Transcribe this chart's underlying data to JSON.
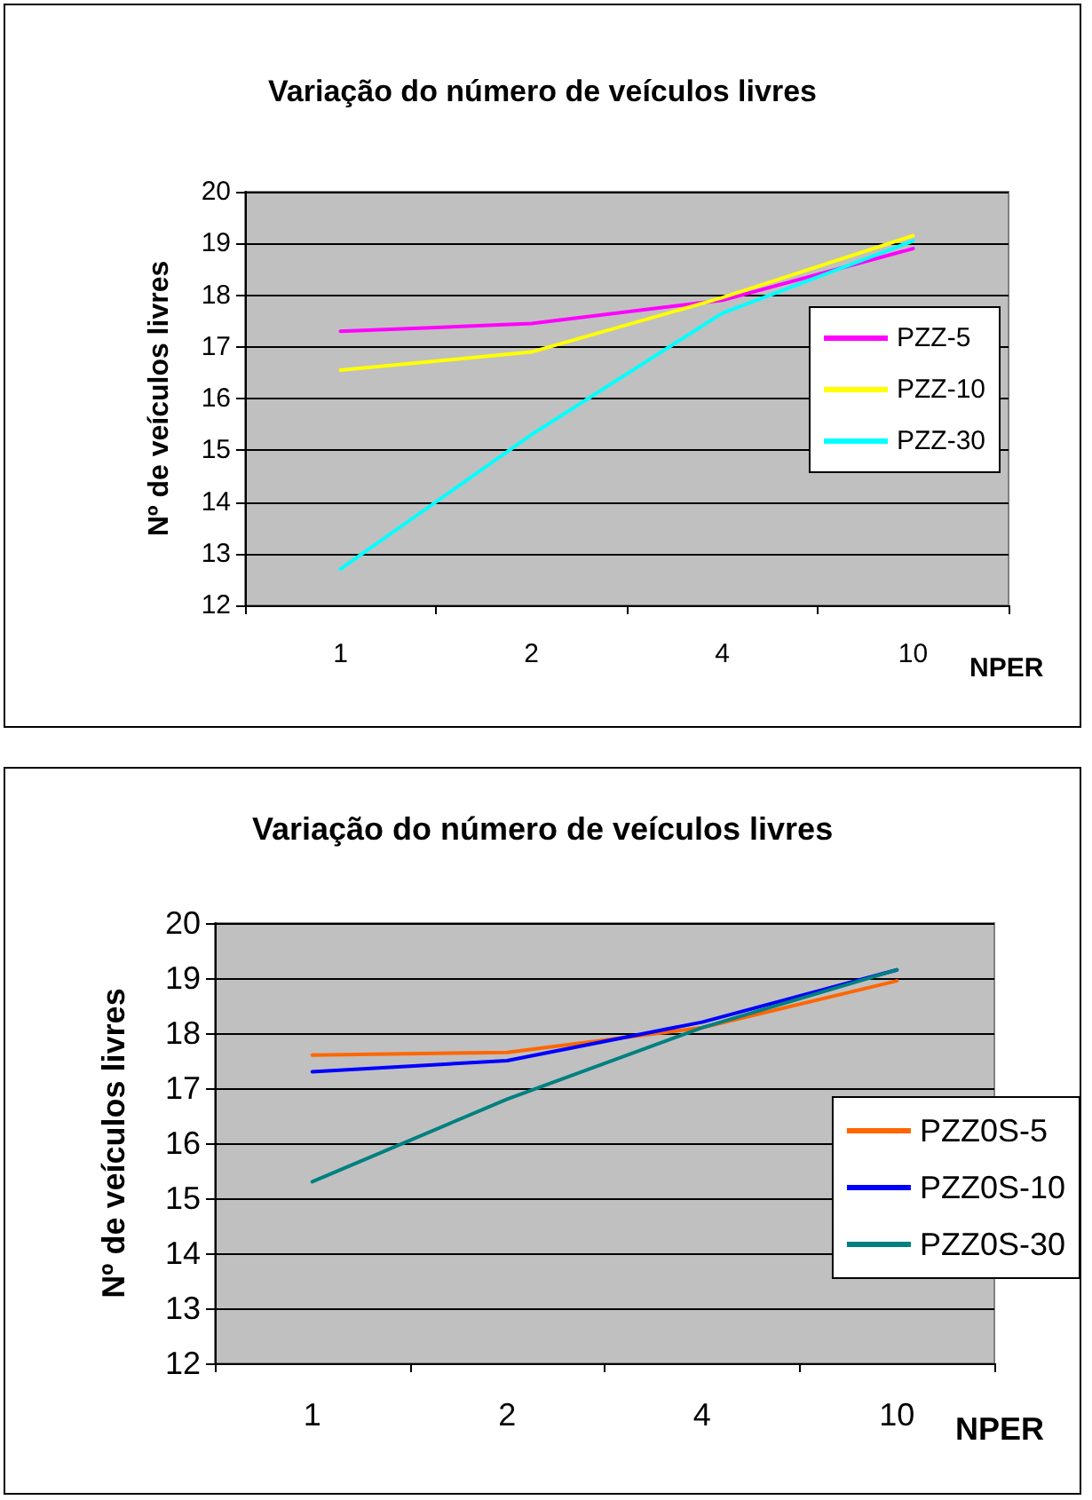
{
  "chart_data": [
    {
      "type": "line",
      "title": "Variação do número de veículos livres",
      "xlabel": "NPER",
      "ylabel": "Nº de veículos livres",
      "categories": [
        "1",
        "2",
        "4",
        "10"
      ],
      "series": [
        {
          "name": "PZZ-5",
          "color": "#ff00ff",
          "values": [
            17.3,
            17.45,
            17.9,
            18.9
          ]
        },
        {
          "name": "PZZ-10",
          "color": "#ffff00",
          "values": [
            16.55,
            16.9,
            17.95,
            19.15
          ]
        },
        {
          "name": "PZZ-30",
          "color": "#00ffff",
          "values": [
            12.7,
            15.3,
            17.65,
            19.05
          ]
        }
      ],
      "ylim": [
        12,
        20
      ],
      "yticks": [
        12,
        13,
        14,
        15,
        16,
        17,
        18,
        19,
        20
      ],
      "grid": "y",
      "legend": "right",
      "marker": "none"
    },
    {
      "type": "line",
      "title": "Variação do número de veículos livres",
      "xlabel": "NPER",
      "ylabel": "Nº de veículos livres",
      "categories": [
        "1",
        "2",
        "4",
        "10"
      ],
      "series": [
        {
          "name": "PZZ0S-5",
          "color": "#ff6600",
          "values": [
            17.6,
            17.65,
            18.1,
            18.95
          ]
        },
        {
          "name": "PZZ0S-10",
          "color": "#0000ff",
          "values": [
            17.3,
            17.5,
            18.2,
            19.15
          ]
        },
        {
          "name": "PZZ0S-30",
          "color": "#008080",
          "values": [
            15.3,
            16.8,
            18.1,
            19.15
          ]
        }
      ],
      "ylim": [
        12,
        20
      ],
      "yticks": [
        12,
        13,
        14,
        15,
        16,
        17,
        18,
        19,
        20
      ],
      "grid": "y",
      "legend": "right",
      "marker": "none"
    }
  ]
}
